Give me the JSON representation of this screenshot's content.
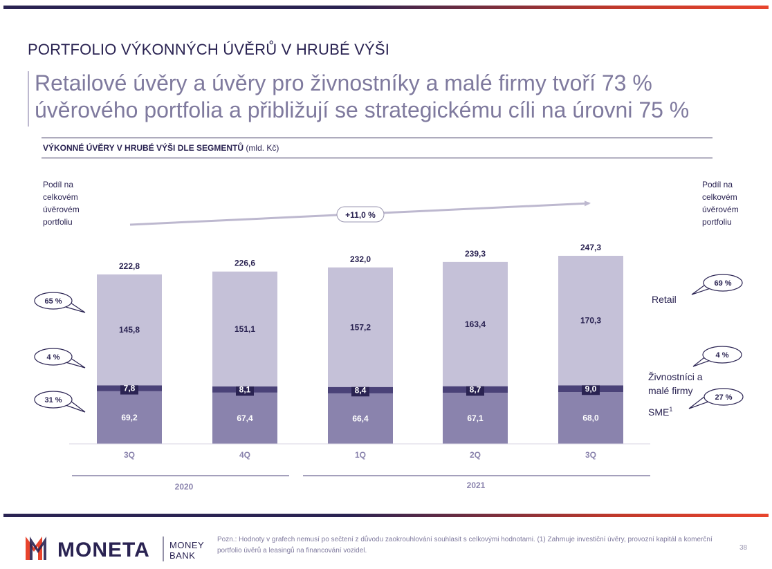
{
  "section_title": "PORTFOLIO VÝKONNÝCH ÚVĚRŮ V HRUBÉ VÝŠI",
  "headline_line1": "Retailové úvěry a úvěry pro živnostníky a malé firmy tvoří 73 %",
  "headline_line2": "úvěrového portfolia a přibližují se strategickému cíli na úrovni 75 %",
  "chart_title": "VÝKONNÉ ÚVĚRY V HRUBÉ VÝŠI DLE SEGMENTŮ",
  "chart_unit": "(mld. Kč)",
  "left_share_label": [
    "Podíl na",
    "celkovém",
    "úvěrovém",
    "portfoliu"
  ],
  "right_share_label": [
    "Podíl na",
    "celkovém",
    "úvěrovém",
    "portfoliu"
  ],
  "growth_label": "+11,0 %",
  "left_callouts": [
    "65 %",
    "4 %",
    "31 %"
  ],
  "right_callouts": [
    "69 %",
    "4 %",
    "27 %"
  ],
  "segment_labels": {
    "retail": "Retail",
    "small_business_line1": "Živnostníci a",
    "small_business_line2": "malé firmy",
    "sme": "SME",
    "sme_sup": "1"
  },
  "years": [
    "2020",
    "2021"
  ],
  "chart_data": {
    "type": "bar",
    "stacked": true,
    "categories": [
      "3Q",
      "4Q",
      "1Q",
      "2Q",
      "3Q"
    ],
    "series": [
      {
        "name": "SME",
        "values": [
          69.2,
          67.4,
          66.4,
          67.1,
          68.0
        ],
        "labels": [
          "69,2",
          "67,4",
          "66,4",
          "67,1",
          "68,0"
        ],
        "color": "#8a83ad"
      },
      {
        "name": "Živnostníci a malé firmy",
        "values": [
          7.8,
          8.1,
          8.4,
          8.7,
          9.0
        ],
        "labels": [
          "7,8",
          "8,1",
          "8,4",
          "8,7",
          "9,0"
        ],
        "color": "#4a4278"
      },
      {
        "name": "Retail",
        "values": [
          145.8,
          151.1,
          157.2,
          163.4,
          170.3
        ],
        "labels": [
          "145,8",
          "151,1",
          "157,2",
          "163,4",
          "170,3"
        ],
        "color": "#c5c1d8"
      }
    ],
    "totals": [
      222.8,
      226.6,
      232.0,
      239.3,
      247.3
    ],
    "total_labels": [
      "222,8",
      "226,6",
      "232,0",
      "239,3",
      "247,3"
    ],
    "ylim": [
      0,
      270
    ]
  },
  "footer": {
    "brand": "MONETA",
    "sub_brand_line1": "MONEY",
    "sub_brand_line2": "BANK",
    "note": "Pozn.: Hodnoty v grafech nemusí po sečtení z důvodu zaokrouhlování souhlasit s celkovými hodnotami. (1) Zahrnuje investiční úvěry, provozní kapitál a komerční portfolio úvěrů a leasingů na financování vozidel.",
    "page": "38"
  },
  "colors": {
    "navy": "#2a2352",
    "headline": "#7f7a9e",
    "accent_red": "#e8442d"
  }
}
